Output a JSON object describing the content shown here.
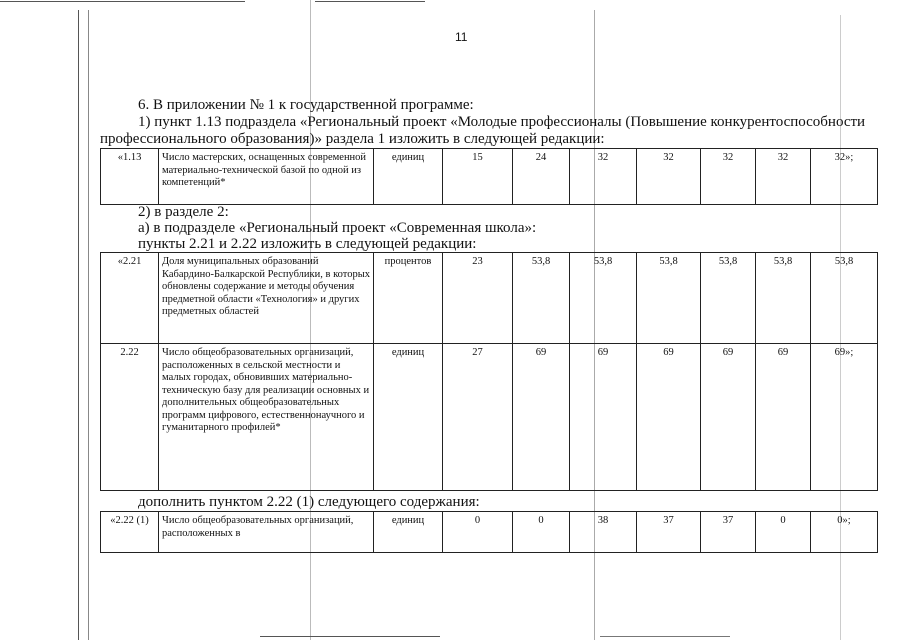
{
  "page_number": "11",
  "paragraphs": {
    "p1": "6. В приложении № 1 к государственной программе:",
    "p2a": "1) пункт 1.13 подраздела «Региональный проект «Молодые профессионалы (Повышение конкурентоспособности",
    "p2b": "профессионального образования)» раздела 1 изложить в следующей редакции:",
    "p3": "2) в разделе 2:",
    "p4": "а) в подразделе «Региональный проект «Современная школа»:",
    "p5": "пункты 2.21 и 2.22 изложить в следующей редакции:",
    "p6": "дополнить пунктом 2.22 (1) следующего содержания:"
  },
  "table1": [
    [
      "«1.13",
      "Число мастерских, оснащенных современной материально-технической базой по одной из компетенций*",
      "единиц",
      "15",
      "24",
      "32",
      "32",
      "32",
      "32",
      "32»;"
    ]
  ],
  "table2": [
    [
      "«2.21",
      "Доля муниципальных образований Кабардино-Балкарской Республики, в которых обновлены содержание и методы обучения предметной области «Технология» и других предметных областей",
      "процентов",
      "23",
      "53,8",
      "53,8",
      "53,8",
      "53,8",
      "53,8",
      "53,8"
    ],
    [
      "2.22",
      "Число общеобразовательных организаций, расположенных в сельской местности и малых городах, обновивших материально-техническую базу для реализации основных и дополнительных общеобразовательных программ цифрового, естественнонаучного и гуманитарного профилей*",
      "единиц",
      "27",
      "69",
      "69",
      "69",
      "69",
      "69",
      "69»;"
    ]
  ],
  "table3": [
    [
      "«2.22 (1)",
      "Число общеобразовательных организаций, расположенных в",
      "единиц",
      "0",
      "0",
      "38",
      "37",
      "37",
      "0",
      "0»;"
    ]
  ]
}
